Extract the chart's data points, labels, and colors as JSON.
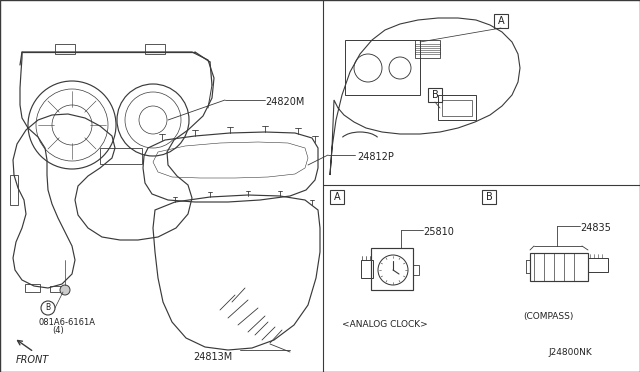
{
  "bg_color": "#ffffff",
  "line_color": "#3a3a3a",
  "parts": {
    "cluster_housing": "24820M",
    "lens_cover": "24812P",
    "lens_inner": "24813M",
    "bolt": "081A6-6161A",
    "bolt_qty": "(4)",
    "analog_clock": "25810",
    "compass": "24835",
    "front_label": "FRONT"
  },
  "callout_labels": {
    "analog_clock_desc": "<ANALOG CLOCK>",
    "compass_desc": "(COMPASS)",
    "diagram_ref": "J24800NK"
  }
}
